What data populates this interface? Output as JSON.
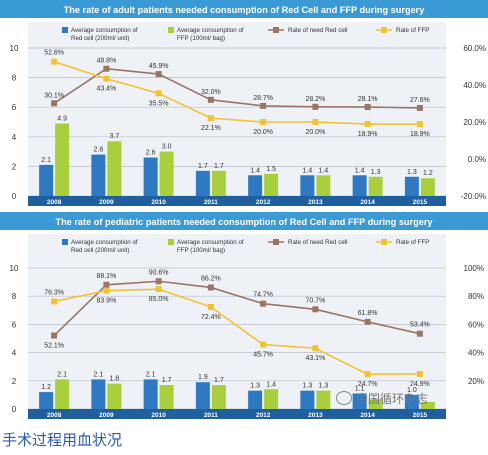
{
  "chart_data": [
    {
      "type": "bar+line",
      "title": "The rate of adult patients needed consumption of Red Cell and FFP during surgery",
      "categories": [
        "2008",
        "2009",
        "2010",
        "2011",
        "2012",
        "2013",
        "2014",
        "2015"
      ],
      "left_ticks": [
        "0",
        "2",
        "4",
        "6",
        "8",
        "10"
      ],
      "right_ticks": [
        "-20.0%",
        "0.0%",
        "20.0%",
        "40.0%",
        "60.0%"
      ],
      "ylim_left": [
        0,
        10
      ],
      "ylim_right": [
        -20,
        60
      ],
      "grid": true,
      "legend_position": "top",
      "series": [
        {
          "name": "Average consumption of Red cell (200ml/ unit)",
          "kind": "bar",
          "axis": "left",
          "values": [
            2.1,
            2.8,
            2.6,
            1.7,
            1.4,
            1.4,
            1.4,
            1.3
          ],
          "labels": [
            "2.1",
            "2.8",
            "2.6",
            "1.7",
            "1.4",
            "1.4",
            "1.4",
            "1.3"
          ]
        },
        {
          "name": "Average consumption of FFP (100ml/ bag)",
          "kind": "bar",
          "axis": "left",
          "values": [
            4.9,
            3.7,
            3.0,
            1.7,
            1.5,
            1.4,
            1.3,
            1.2
          ],
          "labels": [
            "4.9",
            "3.7",
            "3.0",
            "1.7",
            "1.5",
            "1.4",
            "1.3",
            "1.2"
          ]
        },
        {
          "name": "Rate of need Red cell",
          "kind": "line",
          "axis": "right",
          "values": [
            30.1,
            48.8,
            45.9,
            32.0,
            28.7,
            28.2,
            28.1,
            27.6
          ],
          "labels": [
            "30.1%",
            "48.8%",
            "45.9%",
            "32.0%",
            "28.7%",
            "28.2%",
            "28.1%",
            "27.6%"
          ]
        },
        {
          "name": "Rate of FFP",
          "kind": "line",
          "axis": "right",
          "values": [
            52.6,
            43.4,
            35.5,
            22.1,
            20.0,
            20.0,
            18.9,
            18.9
          ],
          "labels": [
            "52.6%",
            "43.4%",
            "35.5%",
            "22.1%",
            "20.0%",
            "20.0%",
            "18.9%",
            "18.9%"
          ]
        }
      ]
    },
    {
      "type": "bar+line",
      "title": "The rate of pediatric patients needed consumption of Red Cell and FFP during surgery",
      "categories": [
        "2008",
        "2009",
        "2010",
        "2011",
        "2012",
        "2013",
        "2014",
        "2015"
      ],
      "left_ticks": [
        "0",
        "2",
        "4",
        "6",
        "8",
        "10"
      ],
      "right_ticks": [
        "20%",
        "40%",
        "60%",
        "80%",
        "100%"
      ],
      "ylim_left": [
        0,
        10
      ],
      "ylim_right": [
        0,
        100
      ],
      "grid": true,
      "legend_position": "top",
      "series": [
        {
          "name": "Average consumption of Red cell (200ml/ unit)",
          "kind": "bar",
          "axis": "left",
          "values": [
            1.2,
            2.1,
            2.1,
            1.9,
            1.3,
            1.3,
            1.1,
            1.0
          ],
          "labels": [
            "1.2",
            "2.1",
            "2.1",
            "1.9",
            "1.3",
            "1.3",
            "1.1",
            "1.0"
          ]
        },
        {
          "name": "Average consumption of FFP (100ml/ bag)",
          "kind": "bar",
          "axis": "left",
          "values": [
            2.1,
            1.8,
            1.7,
            1.7,
            1.4,
            1.3,
            0.7,
            0.5
          ],
          "labels": [
            "2.1",
            "1.8",
            "1.7",
            "1.7",
            "1.4",
            "1.3",
            "",
            ""
          ]
        },
        {
          "name": "Rate of need Red cell",
          "kind": "line",
          "axis": "right",
          "values": [
            52.1,
            88.1,
            90.6,
            86.2,
            74.7,
            70.7,
            61.8,
            53.4
          ],
          "labels": [
            "52.1%",
            "88.1%",
            "90.6%",
            "86.2%",
            "74.7%",
            "70.7%",
            "61.8%",
            "53.4%"
          ]
        },
        {
          "name": "Rate of FFP",
          "kind": "line",
          "axis": "right",
          "values": [
            76.3,
            83.9,
            85.0,
            72.4,
            45.7,
            43.1,
            24.7,
            24.9
          ],
          "labels": [
            "76.3%",
            "83.9%",
            "85.0%",
            "72.4%",
            "45.7%",
            "43.1%",
            "24.7%",
            "24.9%"
          ]
        }
      ]
    }
  ],
  "colors": {
    "red_cell": "#2f79c2",
    "ffp": "#a9cf3f",
    "rate_red_cell": "#9a7565",
    "rate_ffp": "#f2c232",
    "title_bar": "#3a9ad6",
    "year_bar": "#1f5f9e",
    "plot_bg": "#eef2f7"
  },
  "caption": "手术过程用血状况",
  "watermark": "中国循环杂志"
}
